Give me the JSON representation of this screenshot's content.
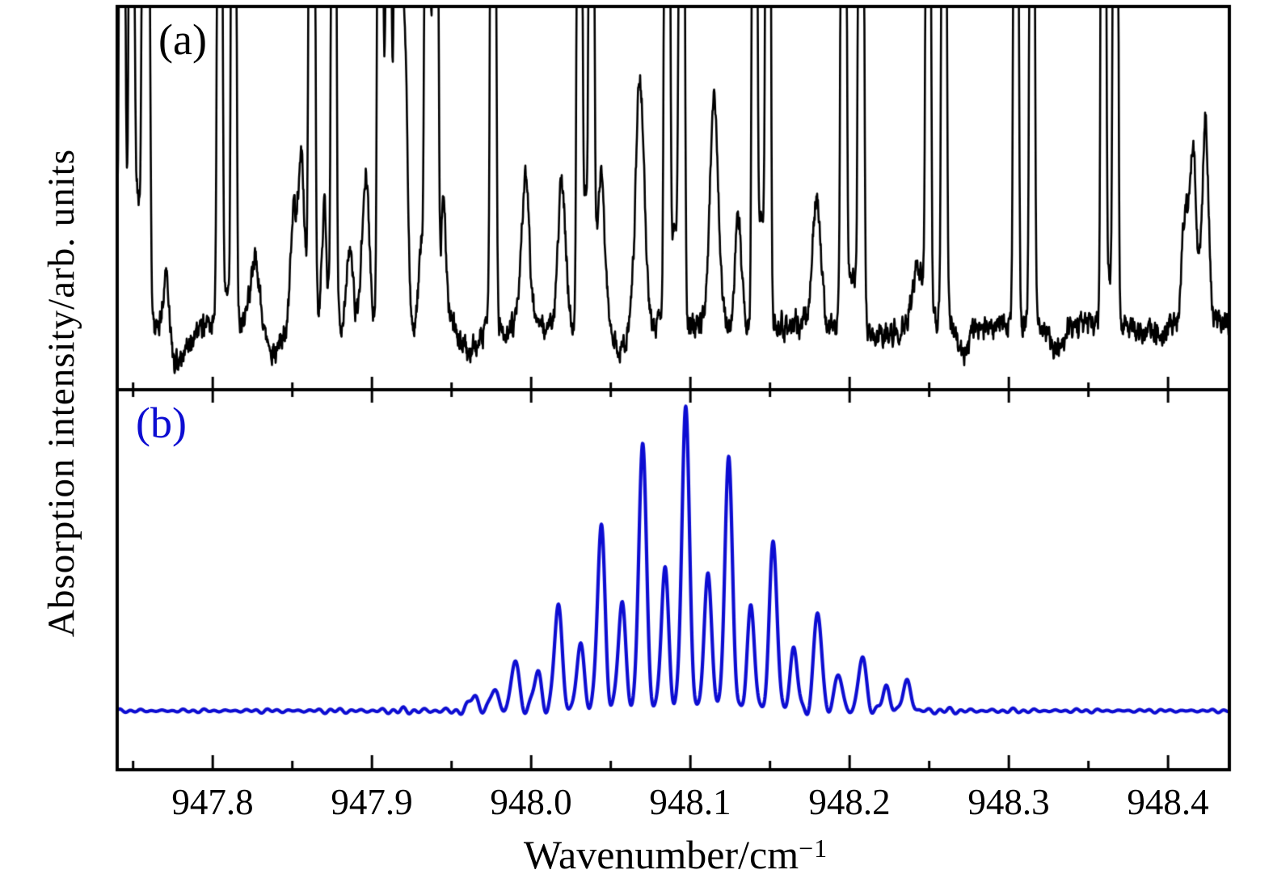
{
  "figure": {
    "description": "Two stacked absorption spectra panels sharing one wavenumber axis"
  },
  "colors": {
    "background": "#ffffff",
    "axis": "#000000",
    "trace_a": "#000000",
    "trace_b": "#0d0dd2"
  },
  "axes": {
    "x": {
      "label_main": "Wavenumber/cm",
      "label_sup": "−1",
      "tick_labels": [
        "947.8",
        "947.9",
        "948.0",
        "948.1",
        "948.2",
        "948.3",
        "948.4"
      ]
    },
    "y": {
      "label": "Absorption intensity/arb. units"
    }
  },
  "chart_data": {
    "type": "line",
    "title": "",
    "xlabel": "Wavenumber/cm−1",
    "ylabel": "Absorption intensity/arb. units",
    "x_range": [
      947.74,
      948.4385
    ],
    "x_ticks_major": [
      947.8,
      947.9,
      948.0,
      948.1,
      948.2,
      948.3,
      948.4
    ],
    "x_ticks_minor": [
      947.75,
      947.85,
      947.95,
      948.05,
      948.15,
      948.25,
      948.35
    ],
    "grid": false,
    "legend": "none",
    "panels": [
      {
        "id": "a",
        "label": "(a)",
        "description": "Measured absorption spectrum; values are fraction of panel height above bottom of panel (a); lines given as [center_wavenumber, amplitude, sigma]; amplitudes > 1 are saturated and clipped at the top frame",
        "color": "#000000",
        "baseline": 0.17,
        "noise_amp": 0.016,
        "clip_level": 1.05,
        "lines": [
          [
            947.7365,
            0.4,
            0.0035
          ],
          [
            947.743,
            5,
            0.001
          ],
          [
            947.7445,
            0.5,
            0.0016
          ],
          [
            947.749,
            5,
            0.001
          ],
          [
            947.7525,
            0.35,
            0.0018
          ],
          [
            947.758,
            5,
            0.0014
          ],
          [
            947.7706,
            0.18,
            0.0018
          ],
          [
            947.778,
            -0.1,
            0.006
          ],
          [
            947.8044,
            5,
            0.001
          ],
          [
            947.8088,
            0.1,
            0.0022
          ],
          [
            947.8132,
            5,
            0.001
          ],
          [
            947.8265,
            0.18,
            0.0028
          ],
          [
            947.838,
            -0.07,
            0.005
          ],
          [
            947.8505,
            0.28,
            0.0018
          ],
          [
            947.8555,
            0.46,
            0.002
          ],
          [
            947.8623,
            5,
            0.0012
          ],
          [
            947.87,
            0.3,
            0.0016
          ],
          [
            947.876,
            5,
            0.001
          ],
          [
            947.886,
            0.2,
            0.002
          ],
          [
            947.896,
            0.4,
            0.0022
          ],
          [
            947.905,
            5,
            0.001
          ],
          [
            947.9078,
            0.55,
            0.0016
          ],
          [
            947.9105,
            5,
            0.0009
          ],
          [
            947.914,
            0.6,
            0.0018
          ],
          [
            947.9165,
            5,
            0.0012
          ],
          [
            947.9205,
            0.78,
            0.0018
          ],
          [
            947.931,
            0.22,
            0.0016
          ],
          [
            947.9347,
            5,
            0.001
          ],
          [
            947.9374,
            0.5,
            0.0014
          ],
          [
            947.94,
            5,
            0.001
          ],
          [
            947.945,
            0.32,
            0.0016
          ],
          [
            947.962,
            -0.07,
            0.005
          ],
          [
            947.9761,
            5,
            0.0011
          ],
          [
            947.9964,
            0.38,
            0.0024
          ],
          [
            948.0192,
            0.36,
            0.0024
          ],
          [
            948.0303,
            5,
            0.001
          ],
          [
            948.0341,
            0.35,
            0.002
          ],
          [
            948.0379,
            5,
            0.001
          ],
          [
            948.0437,
            0.4,
            0.0024
          ],
          [
            948.056,
            -0.05,
            0.004
          ],
          [
            948.0683,
            0.64,
            0.0026
          ],
          [
            948.0853,
            5,
            0.0011
          ],
          [
            948.09,
            0.25,
            0.0024
          ],
          [
            948.0946,
            5,
            0.0011
          ],
          [
            948.1149,
            0.59,
            0.0026
          ],
          [
            948.1301,
            0.27,
            0.002
          ],
          [
            948.1403,
            5,
            0.001
          ],
          [
            948.1445,
            0.28,
            0.002
          ],
          [
            948.1488,
            5,
            0.001
          ],
          [
            948.1793,
            0.33,
            0.0026
          ],
          [
            948.1962,
            5,
            0.0011
          ],
          [
            948.2017,
            0.15,
            0.0024
          ],
          [
            948.2072,
            5,
            0.0011
          ],
          [
            948.221,
            -0.03,
            0.008
          ],
          [
            948.243,
            0.15,
            0.0035
          ],
          [
            948.2494,
            5,
            0.001
          ],
          [
            948.2593,
            5,
            0.001
          ],
          [
            948.272,
            -0.07,
            0.004
          ],
          [
            948.3045,
            5,
            0.001
          ],
          [
            948.3146,
            5,
            0.001
          ],
          [
            948.329,
            -0.06,
            0.005
          ],
          [
            948.3594,
            5,
            0.001
          ],
          [
            948.3632,
            0.12,
            0.002
          ],
          [
            948.367,
            5,
            0.001
          ],
          [
            948.39,
            -0.02,
            0.01
          ],
          [
            948.4107,
            0.28,
            0.002
          ],
          [
            948.4157,
            0.46,
            0.002
          ],
          [
            948.4234,
            0.53,
            0.002
          ]
        ]
      },
      {
        "id": "b",
        "label": "(b)",
        "description": "Simulated spectrum: comb of evenly spaced peaks (spacing ~0.0135 cm-1) centered near 948.097 cm-1 over a weak oscillating baseline; peaks given as [center_wavenumber, relative_height 0..1]",
        "color": "#0d0dd2",
        "baseline": 0.155,
        "peak_sigma": 0.0024,
        "amplitude_scale": 0.787,
        "peaks": [
          [
            947.964,
            0.054
          ],
          [
            947.977,
            0.073
          ],
          [
            947.99,
            0.17
          ],
          [
            948.004,
            0.13
          ],
          [
            948.017,
            0.355
          ],
          [
            948.031,
            0.22
          ],
          [
            948.044,
            0.61
          ],
          [
            948.057,
            0.355
          ],
          [
            948.07,
            0.89
          ],
          [
            948.084,
            0.46
          ],
          [
            948.097,
            1.0
          ],
          [
            948.111,
            0.45
          ],
          [
            948.124,
            0.83
          ],
          [
            948.138,
            0.33
          ],
          [
            948.152,
            0.56
          ],
          [
            948.165,
            0.2
          ],
          [
            948.18,
            0.33
          ],
          [
            948.193,
            0.12
          ],
          [
            948.208,
            0.18
          ],
          [
            948.223,
            0.075
          ],
          [
            948.236,
            0.1
          ]
        ],
        "ripple": {
          "base_amp": 0.0045,
          "center_amp": 0.016,
          "center": 948.085,
          "width": 0.15,
          "period1": 0.0066,
          "period2": 0.0137
        }
      }
    ]
  }
}
